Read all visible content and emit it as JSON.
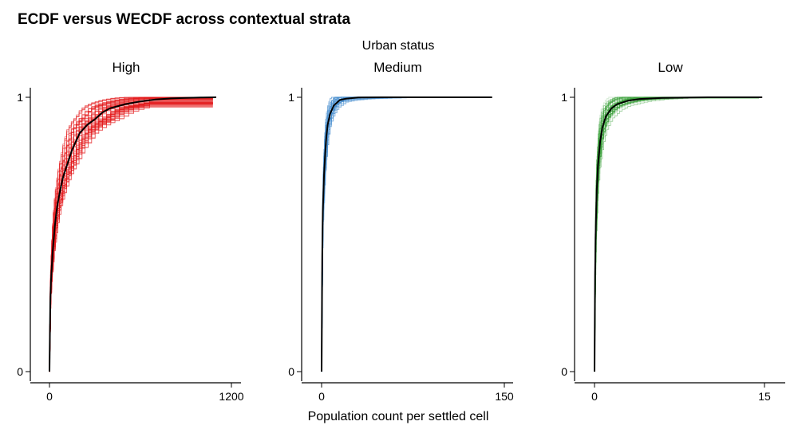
{
  "figure": {
    "title": "ECDF versus WECDF across contextual strata"
  },
  "chart_data": {
    "type": "line",
    "title": "ECDF versus WECDF across contextual strata",
    "strip_label": "Urban status",
    "xlabel": "Population count per settled cell",
    "ylabel": "",
    "grid": false,
    "legend": "none",
    "ylim": [
      0,
      1
    ],
    "panels": [
      {
        "name": "High",
        "color": "#e41a1c",
        "xlim": [
          0,
          1200
        ],
        "x_ticks": [
          "0",
          "1200"
        ],
        "y_ticks": [
          "0",
          "1"
        ],
        "ecdf": {
          "x": [
            0,
            5,
            10,
            20,
            35,
            50,
            70,
            90,
            120,
            150,
            200,
            250,
            300,
            350,
            400,
            500,
            600,
            700,
            800,
            900,
            1000,
            1100
          ],
          "y": [
            0.0,
            0.25,
            0.33,
            0.43,
            0.53,
            0.6,
            0.66,
            0.71,
            0.76,
            0.81,
            0.87,
            0.9,
            0.92,
            0.945,
            0.96,
            0.975,
            0.985,
            0.992,
            0.996,
            0.998,
            0.999,
            1.0
          ]
        },
        "wecdf_series_count": 60
      },
      {
        "name": "Medium",
        "color": "#4a8fd0",
        "xlim": [
          0,
          150
        ],
        "x_ticks": [
          "0",
          "150"
        ],
        "y_ticks": [
          "0",
          "1"
        ],
        "ecdf": {
          "x": [
            0,
            0.5,
            1,
            2,
            3,
            4,
            5,
            7,
            10,
            15,
            20,
            30,
            50,
            80,
            140
          ],
          "y": [
            0.0,
            0.42,
            0.58,
            0.72,
            0.8,
            0.86,
            0.9,
            0.94,
            0.97,
            0.99,
            0.995,
            0.999,
            1.0,
            1.0,
            1.0
          ]
        },
        "wecdf_series_count": 45
      },
      {
        "name": "Low",
        "color": "#3ea33e",
        "xlim": [
          0,
          15
        ],
        "x_ticks": [
          "0",
          "15"
        ],
        "y_ticks": [
          "0",
          "1"
        ],
        "ecdf": {
          "x": [
            0,
            0.05,
            0.1,
            0.2,
            0.3,
            0.5,
            0.7,
            1.0,
            1.5,
            2.0,
            3.0,
            4.0,
            6.0,
            10.0,
            14.8
          ],
          "y": [
            0.0,
            0.35,
            0.5,
            0.66,
            0.75,
            0.84,
            0.89,
            0.93,
            0.96,
            0.975,
            0.988,
            0.994,
            0.998,
            1.0,
            1.0
          ]
        },
        "wecdf_series_count": 45
      }
    ]
  }
}
